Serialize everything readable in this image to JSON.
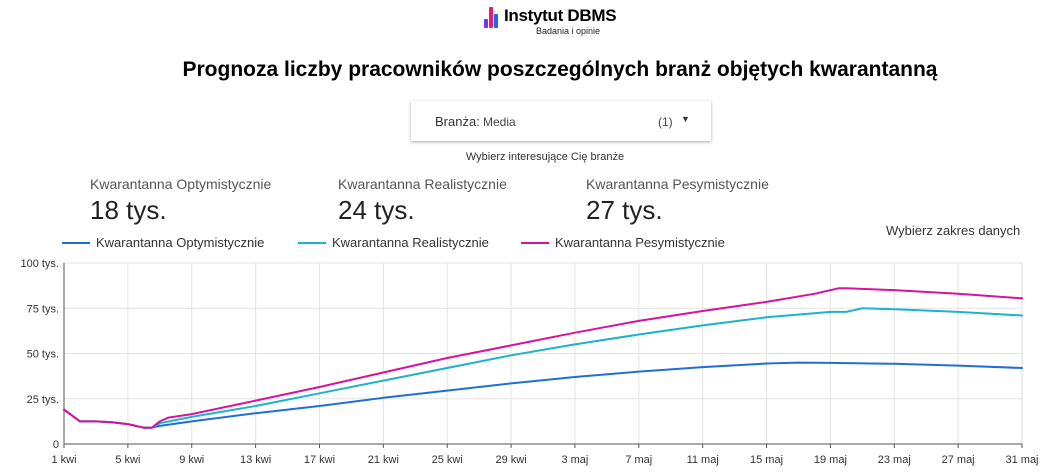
{
  "brand": {
    "name": "Instytut DBMS",
    "tagline": "Badania i opinie",
    "colors": [
      "#7b2ff7",
      "#e11d74",
      "#2563eb"
    ]
  },
  "title": "Prognoza liczby pracowników poszczególnych branż objętych kwarantanną",
  "filter": {
    "label": "Branża:",
    "value": "Media",
    "count": "(1)",
    "hint": "Wybierz interesujące Cię branże"
  },
  "kpis": [
    {
      "label": "Kwarantanna Optymistycznie",
      "value": "18 tys."
    },
    {
      "label": "Kwarantanna Realistycznie",
      "value": "24 tys."
    },
    {
      "label": "Kwarantanna Pesymistycznie",
      "value": "27 tys."
    }
  ],
  "date_range_label": "Wybierz zakres danych",
  "chart_data": {
    "type": "line",
    "x_label": "",
    "y_label": "",
    "ylim": [
      0,
      100
    ],
    "xlim": [
      0,
      60
    ],
    "y_ticks": [
      0,
      25,
      50,
      75,
      100
    ],
    "y_tick_labels": [
      "0",
      "25 tys.",
      "50 tys.",
      "75 tys.",
      "100 tys."
    ],
    "x_ticks": [
      0,
      4,
      8,
      12,
      16,
      20,
      24,
      28,
      32,
      36,
      40,
      44,
      48,
      52,
      56,
      60
    ],
    "x_tick_labels": [
      "1 kwi",
      "5 kwi",
      "9 kwi",
      "13 kwi",
      "17 kwi",
      "21 kwi",
      "25 kwi",
      "29 kwi",
      "3 maj",
      "7 maj",
      "11 maj",
      "15 maj",
      "19 maj",
      "23 maj",
      "27 maj",
      "31 maj"
    ],
    "grid": true,
    "legend_position": "top",
    "series": [
      {
        "name": "Kwarantanna Optymistycznie",
        "color": "#1f6fd8",
        "x": [
          0,
          1,
          2,
          3,
          4,
          5,
          5.5,
          6,
          8,
          12,
          16,
          20,
          24,
          28,
          32,
          36,
          40,
          44,
          46,
          48,
          52,
          56,
          60
        ],
        "y": [
          19,
          12.5,
          12.5,
          12,
          11,
          9,
          9,
          10,
          12.5,
          17,
          21,
          25.5,
          29.5,
          33.5,
          37,
          40,
          42.5,
          44.5,
          45,
          44.8,
          44.3,
          43.3,
          42
        ]
      },
      {
        "name": "Kwarantanna Realistycznie",
        "color": "#1cb3c8",
        "x": [
          0,
          1,
          2,
          3,
          4,
          5,
          5.5,
          6,
          8,
          12,
          16,
          20,
          24,
          28,
          32,
          36,
          40,
          44,
          48,
          49,
          50,
          52,
          56,
          60
        ],
        "y": [
          19,
          12.5,
          12.5,
          12,
          11,
          9,
          9,
          11.5,
          15,
          21,
          28,
          35,
          42,
          49,
          55,
          60.5,
          65.5,
          70,
          73,
          73,
          75,
          74.5,
          73,
          71
        ]
      },
      {
        "name": "Kwarantanna Pesymistycznie",
        "color": "#d6139a",
        "x": [
          0,
          1,
          2,
          3,
          4,
          5,
          5.5,
          6,
          6.5,
          8,
          12,
          16,
          20,
          24,
          28,
          32,
          36,
          40,
          44,
          47,
          48.5,
          49,
          52,
          56,
          60
        ],
        "y": [
          19,
          12.5,
          12.5,
          12,
          11,
          9,
          9,
          12.5,
          14.5,
          16.5,
          24,
          31.5,
          39.5,
          47.5,
          54.5,
          61.5,
          68,
          73.5,
          78.5,
          83,
          86,
          86,
          85,
          83,
          80.5
        ]
      }
    ]
  }
}
